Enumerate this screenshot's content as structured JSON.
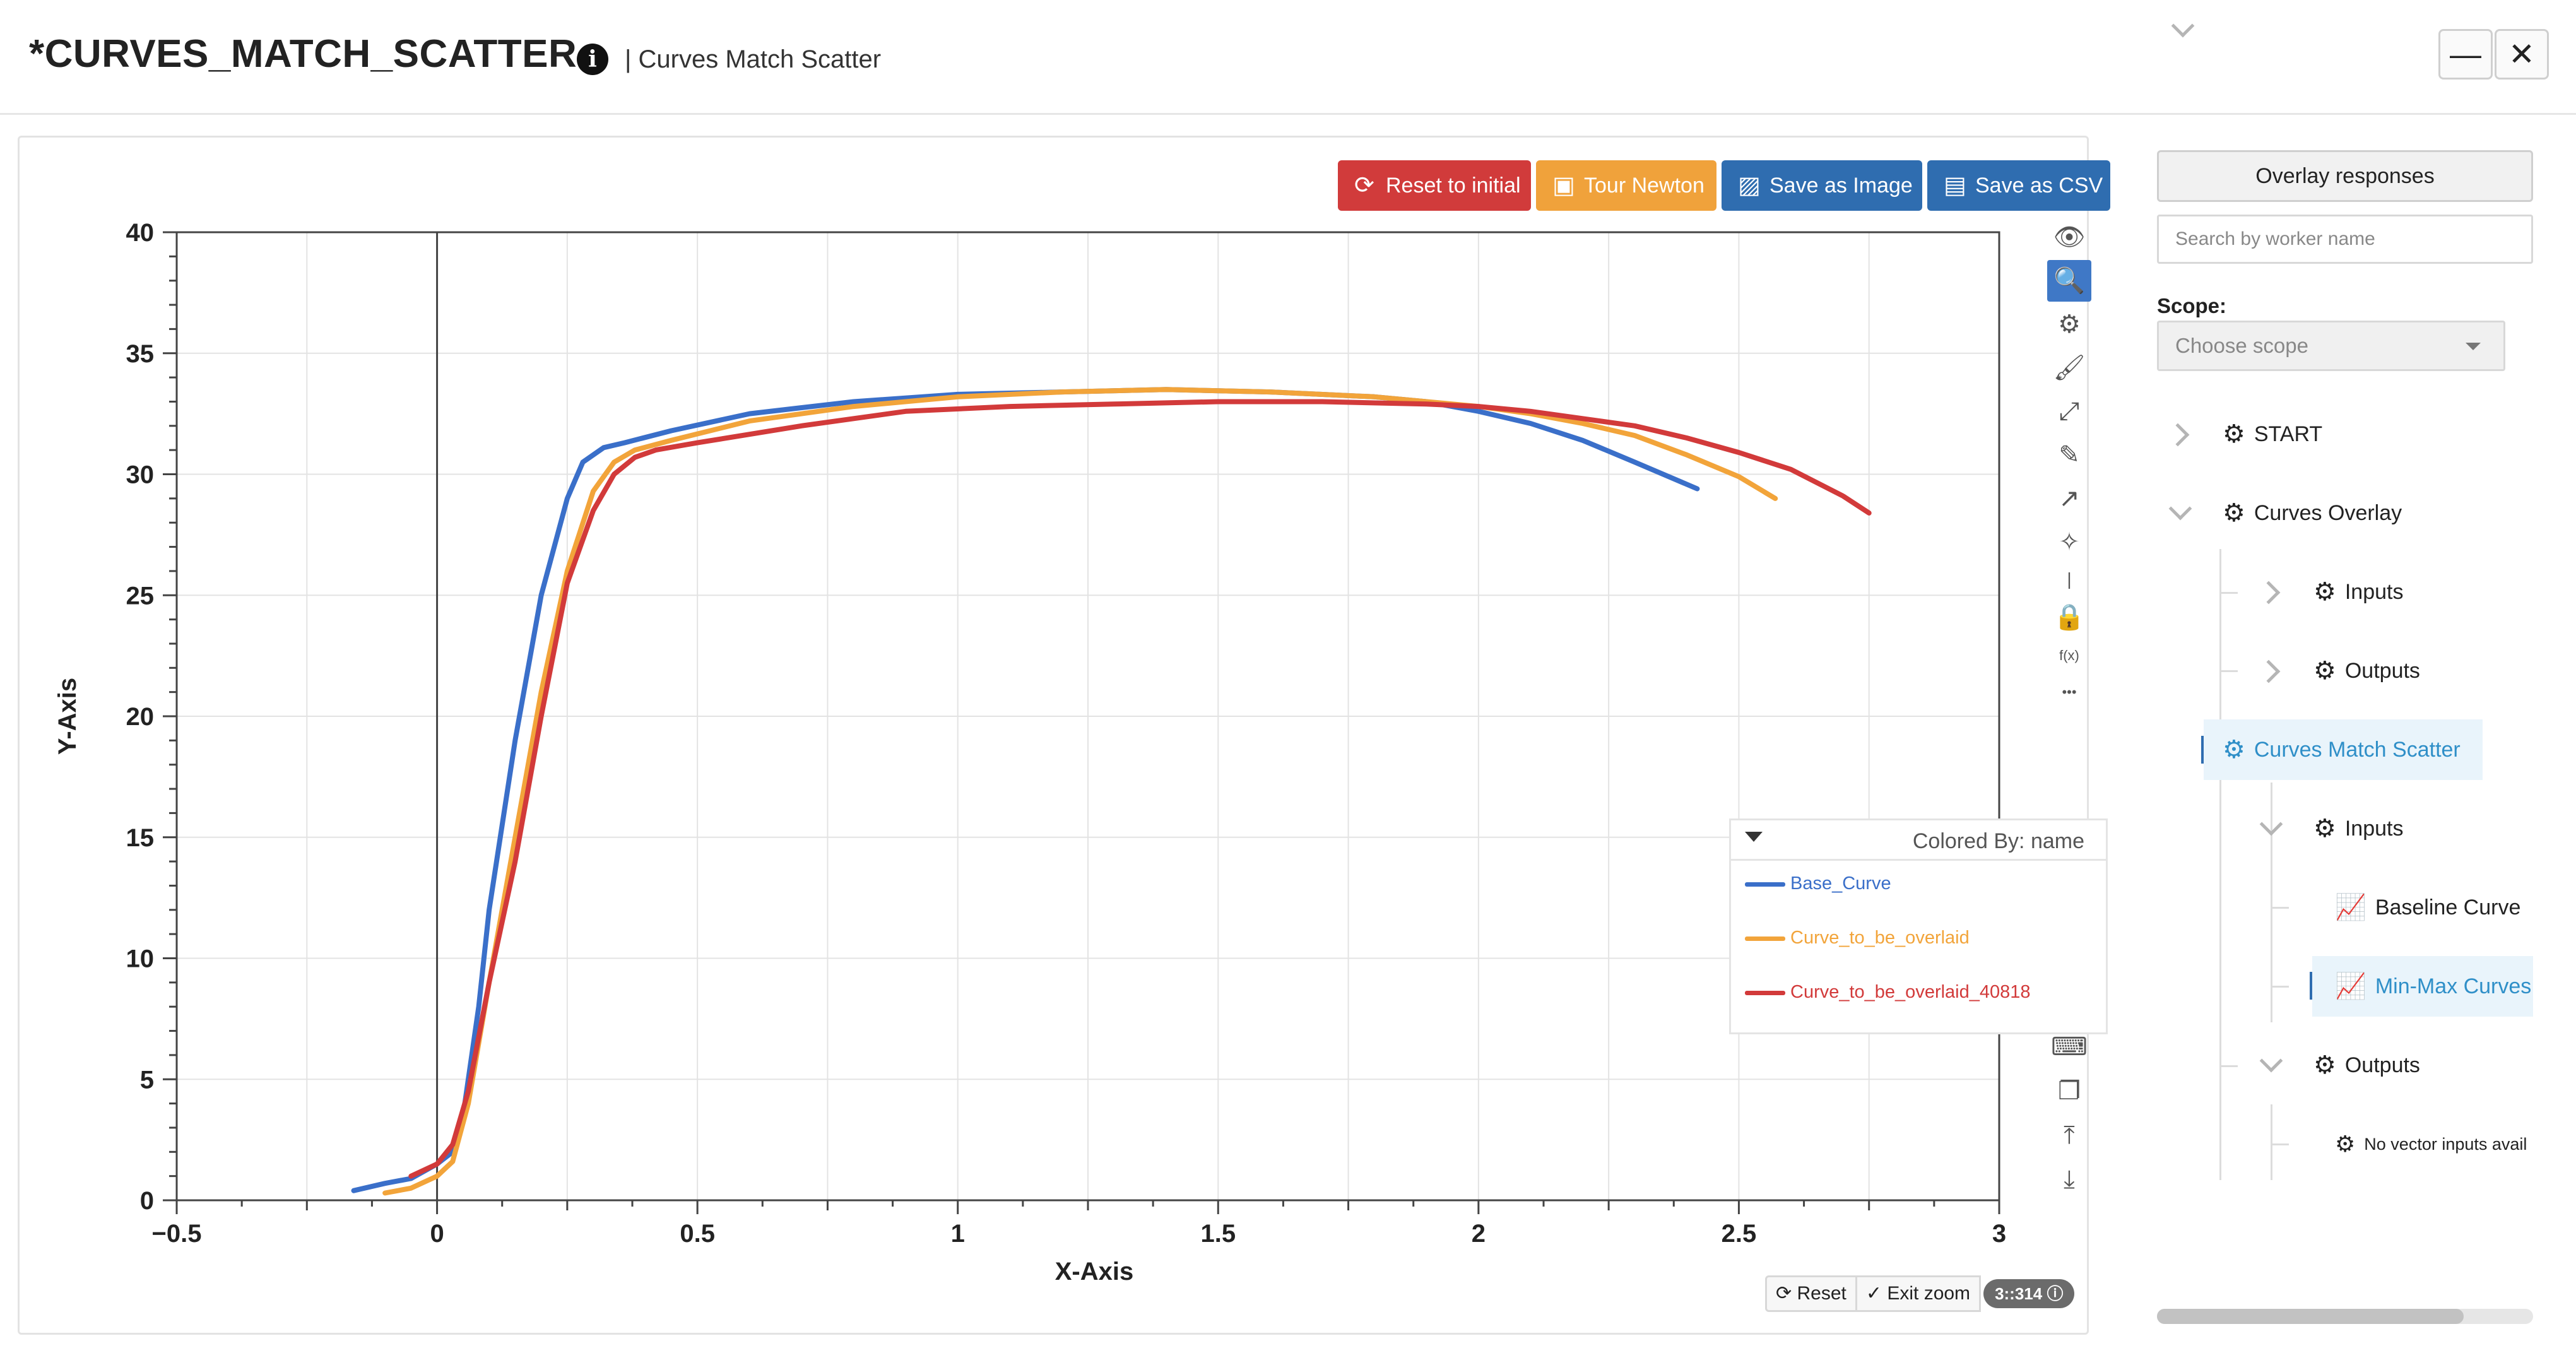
{
  "window": {
    "title": "*CURVES_MATCH_SCATTER",
    "subtitle": "| Curves Match Scatter",
    "info_icon": "info-icon",
    "minimize_label": "—",
    "close_label": "✕"
  },
  "toolbar": {
    "reset_label": "Reset to initial",
    "tour_label": "Tour Newton",
    "save_image_label": "Save as Image",
    "save_csv_label": "Save as CSV",
    "reset_icon": "refresh-icon",
    "tour_icon": "briefcase-icon",
    "save_image_icon": "image-icon",
    "save_csv_icon": "excel-icon"
  },
  "plot_tools": [
    {
      "name": "eye-icon",
      "glyph": "👁"
    },
    {
      "name": "zoom-icon",
      "glyph": "🔍",
      "active": true
    },
    {
      "name": "settings-icon",
      "glyph": "⚙"
    },
    {
      "name": "brush-icon",
      "glyph": "🖌"
    },
    {
      "name": "fit-icon",
      "glyph": "⤢"
    },
    {
      "name": "pencil-icon",
      "glyph": "✎"
    },
    {
      "name": "arrow-icon",
      "glyph": "↗"
    },
    {
      "name": "magic-wand-icon",
      "glyph": "✧"
    },
    {
      "name": "separator-icon",
      "glyph": "|"
    },
    {
      "name": "lock-icon",
      "glyph": "🔒"
    },
    {
      "name": "function-icon",
      "glyph": "f(x)"
    },
    {
      "name": "more-icon",
      "glyph": "•••"
    }
  ],
  "plot_tools_lower": [
    {
      "name": "keyboard-icon",
      "glyph": "⌨"
    },
    {
      "name": "copy-icon",
      "glyph": "❐"
    },
    {
      "name": "upload-icon",
      "glyph": "⤒"
    },
    {
      "name": "download-icon",
      "glyph": "⤓"
    }
  ],
  "legend": {
    "title": "Colored By: name",
    "items": [
      {
        "label": "Base_Curve",
        "color": "#3a6fc9"
      },
      {
        "label": "Curve_to_be_overlaid",
        "color": "#f2a43a"
      },
      {
        "label": "Curve_to_be_overlaid_40818",
        "color": "#d23a3a"
      }
    ]
  },
  "chipbar": {
    "reset_label": "Reset",
    "exit_zoom_label": "Exit zoom",
    "count_label": "3::314"
  },
  "chart_data": {
    "type": "line",
    "xlabel": "X-Axis",
    "ylabel": "Y-Axis",
    "xlim": [
      -0.5,
      3
    ],
    "ylim": [
      0,
      40
    ],
    "xticks": [
      -0.5,
      0,
      0.5,
      1,
      1.5,
      2,
      2.5,
      3
    ],
    "xtick_labels": [
      "−0.5",
      "0",
      "0.5",
      "1",
      "1.5",
      "2",
      "2.5",
      "3"
    ],
    "yticks": [
      0,
      5,
      10,
      15,
      20,
      25,
      30,
      35,
      40
    ],
    "ytick_labels": [
      "0",
      "5",
      "10",
      "15",
      "20",
      "25",
      "30",
      "35",
      "40"
    ],
    "grid": true,
    "legend_position": "right",
    "series": [
      {
        "name": "Base_Curve",
        "color": "#3a6fc9",
        "x": [
          -0.16,
          -0.1,
          -0.05,
          0,
          0.03,
          0.05,
          0.08,
          0.1,
          0.15,
          0.2,
          0.25,
          0.28,
          0.32,
          0.36,
          0.45,
          0.6,
          0.8,
          1.0,
          1.2,
          1.4,
          1.6,
          1.8,
          1.9,
          2.0,
          2.1,
          2.2,
          2.3,
          2.42
        ],
        "y": [
          0.4,
          0.7,
          0.9,
          1.5,
          2.0,
          3.5,
          8.0,
          12.0,
          19.0,
          25.0,
          29.0,
          30.5,
          31.1,
          31.3,
          31.8,
          32.5,
          33.0,
          33.3,
          33.4,
          33.5,
          33.4,
          33.2,
          33.0,
          32.6,
          32.1,
          31.4,
          30.5,
          29.4
        ]
      },
      {
        "name": "Curve_to_be_overlaid",
        "color": "#f2a43a",
        "x": [
          -0.1,
          -0.05,
          0,
          0.03,
          0.06,
          0.1,
          0.15,
          0.2,
          0.25,
          0.3,
          0.34,
          0.38,
          0.45,
          0.6,
          0.8,
          1.0,
          1.2,
          1.4,
          1.6,
          1.8,
          2.0,
          2.1,
          2.2,
          2.3,
          2.4,
          2.5,
          2.57
        ],
        "y": [
          0.3,
          0.5,
          1.0,
          1.6,
          4.0,
          9.0,
          15.0,
          21.0,
          26.0,
          29.3,
          30.5,
          31.0,
          31.4,
          32.2,
          32.8,
          33.2,
          33.4,
          33.5,
          33.4,
          33.2,
          32.8,
          32.5,
          32.1,
          31.6,
          30.8,
          29.9,
          29.0
        ]
      },
      {
        "name": "Curve_to_be_overlaid_40818",
        "color": "#d23a3a",
        "x": [
          -0.05,
          0,
          0.03,
          0.06,
          0.1,
          0.15,
          0.2,
          0.25,
          0.3,
          0.34,
          0.38,
          0.42,
          0.5,
          0.7,
          0.9,
          1.1,
          1.3,
          1.5,
          1.7,
          1.9,
          2.0,
          2.1,
          2.2,
          2.3,
          2.4,
          2.5,
          2.6,
          2.7,
          2.75
        ],
        "y": [
          1.0,
          1.5,
          2.3,
          4.5,
          9.0,
          14.0,
          20.0,
          25.5,
          28.5,
          30.0,
          30.7,
          31.0,
          31.3,
          32.0,
          32.6,
          32.8,
          32.9,
          33.0,
          33.0,
          32.9,
          32.8,
          32.6,
          32.3,
          32.0,
          31.5,
          30.9,
          30.2,
          29.1,
          28.4
        ]
      }
    ]
  },
  "panel": {
    "overlay_label": "Overlay responses",
    "search_placeholder": "Search by worker name",
    "scope_label": "Scope:",
    "scope_placeholder": "Choose scope",
    "tree": [
      {
        "label": "START",
        "icon": "gear-icon"
      },
      {
        "label": "Curves Overlay",
        "icon": "gear-icon"
      },
      {
        "label": "Inputs",
        "icon": "gear-icon"
      },
      {
        "label": "Outputs",
        "icon": "gear-icon"
      },
      {
        "label": "Curves Match Scatter",
        "icon": "gear-icon"
      },
      {
        "label": "Inputs",
        "icon": "gear-icon"
      },
      {
        "label": "Baseline Curve",
        "icon": "line-chart-icon"
      },
      {
        "label": "Min-Max Curves",
        "icon": "line-chart-icon"
      },
      {
        "label": "Outputs",
        "icon": "gear-icon"
      },
      {
        "label": "No vector inputs avail",
        "icon": "gear-icon"
      }
    ]
  }
}
